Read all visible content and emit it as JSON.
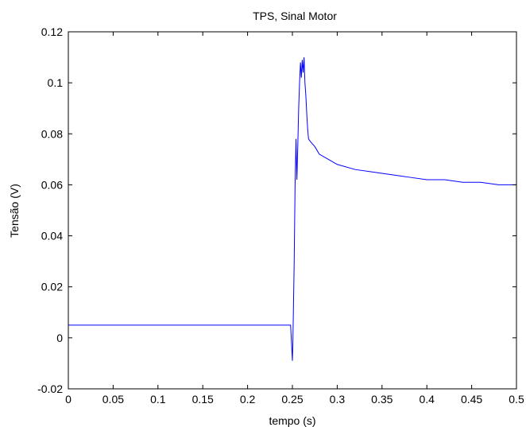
{
  "chart_data": {
    "type": "line",
    "title": "TPS, Sinal Motor",
    "xlabel": "tempo (s)",
    "ylabel": "Tensão (V)",
    "xlim": [
      0,
      0.5
    ],
    "ylim": [
      -0.02,
      0.12
    ],
    "xticks": [
      "0",
      "0.05",
      "0.1",
      "0.15",
      "0.2",
      "0.25",
      "0.3",
      "0.35",
      "0.4",
      "0.45",
      "0.5"
    ],
    "yticks": [
      "-0.02",
      "0",
      "0.02",
      "0.04",
      "0.06",
      "0.08",
      "0.1",
      "0.12"
    ],
    "grid": false,
    "legend": "none",
    "line_color": "#0000ff",
    "series": [
      {
        "x": [
          0,
          0.01,
          0.02,
          0.03,
          0.04,
          0.05,
          0.06,
          0.07,
          0.08,
          0.09,
          0.1,
          0.11,
          0.12,
          0.13,
          0.14,
          0.15,
          0.16,
          0.17,
          0.18,
          0.19,
          0.2,
          0.21,
          0.22,
          0.23,
          0.24,
          0.248,
          0.25,
          0.2505,
          0.251,
          0.252,
          0.253,
          0.254,
          0.255,
          0.256,
          0.257,
          0.258,
          0.259,
          0.26,
          0.261,
          0.262,
          0.263,
          0.264,
          0.265,
          0.266,
          0.267,
          0.268,
          0.27,
          0.275,
          0.28,
          0.29,
          0.3,
          0.32,
          0.34,
          0.36,
          0.38,
          0.4,
          0.42,
          0.44,
          0.46,
          0.48,
          0.5
        ],
        "y": [
          0.005,
          0.005,
          0.005,
          0.005,
          0.005,
          0.005,
          0.005,
          0.005,
          0.005,
          0.005,
          0.005,
          0.005,
          0.005,
          0.005,
          0.005,
          0.005,
          0.005,
          0.005,
          0.005,
          0.005,
          0.005,
          0.005,
          0.005,
          0.005,
          0.005,
          0.005,
          -0.009,
          -0.002,
          0.008,
          0.03,
          0.06,
          0.078,
          0.062,
          0.075,
          0.09,
          0.1,
          0.108,
          0.102,
          0.109,
          0.104,
          0.11,
          0.1,
          0.095,
          0.088,
          0.082,
          0.078,
          0.077,
          0.075,
          0.072,
          0.07,
          0.068,
          0.066,
          0.065,
          0.064,
          0.063,
          0.062,
          0.062,
          0.061,
          0.061,
          0.06,
          0.06
        ]
      }
    ]
  }
}
